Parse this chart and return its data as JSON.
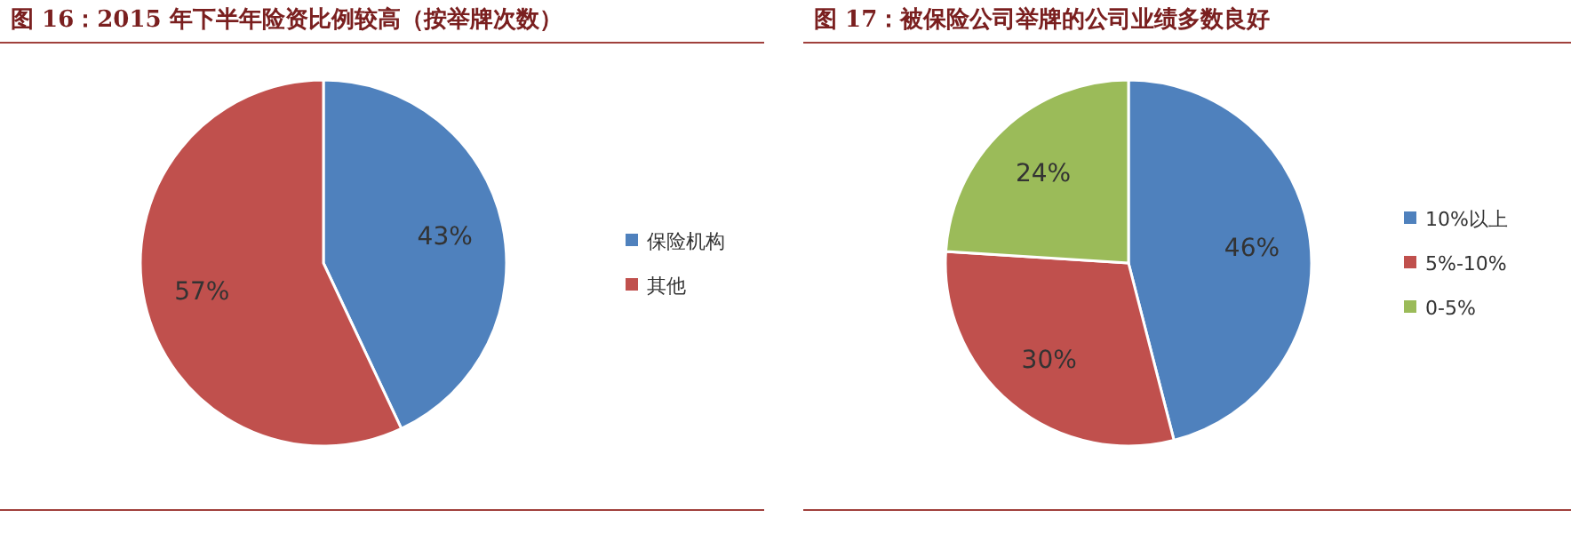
{
  "chart_data": [
    {
      "type": "pie",
      "title": "图 16：2015 年下半年险资比例较高（按举牌次数）",
      "categories": [
        "保险机构",
        "其他"
      ],
      "values": [
        43,
        57
      ],
      "value_labels": [
        "43%",
        "57%"
      ],
      "colors": [
        "#4f81bd",
        "#c0504d"
      ],
      "legend": "right"
    },
    {
      "type": "pie",
      "title": "图 17：被保险公司举牌的公司业绩多数良好",
      "categories": [
        "10%以上",
        "5%-10%",
        "0-5%"
      ],
      "values": [
        46,
        30,
        24
      ],
      "value_labels": [
        "46%",
        "30%",
        "24%"
      ],
      "colors": [
        "#4f81bd",
        "#c0504d",
        "#9bbb59"
      ],
      "legend": "right"
    }
  ]
}
